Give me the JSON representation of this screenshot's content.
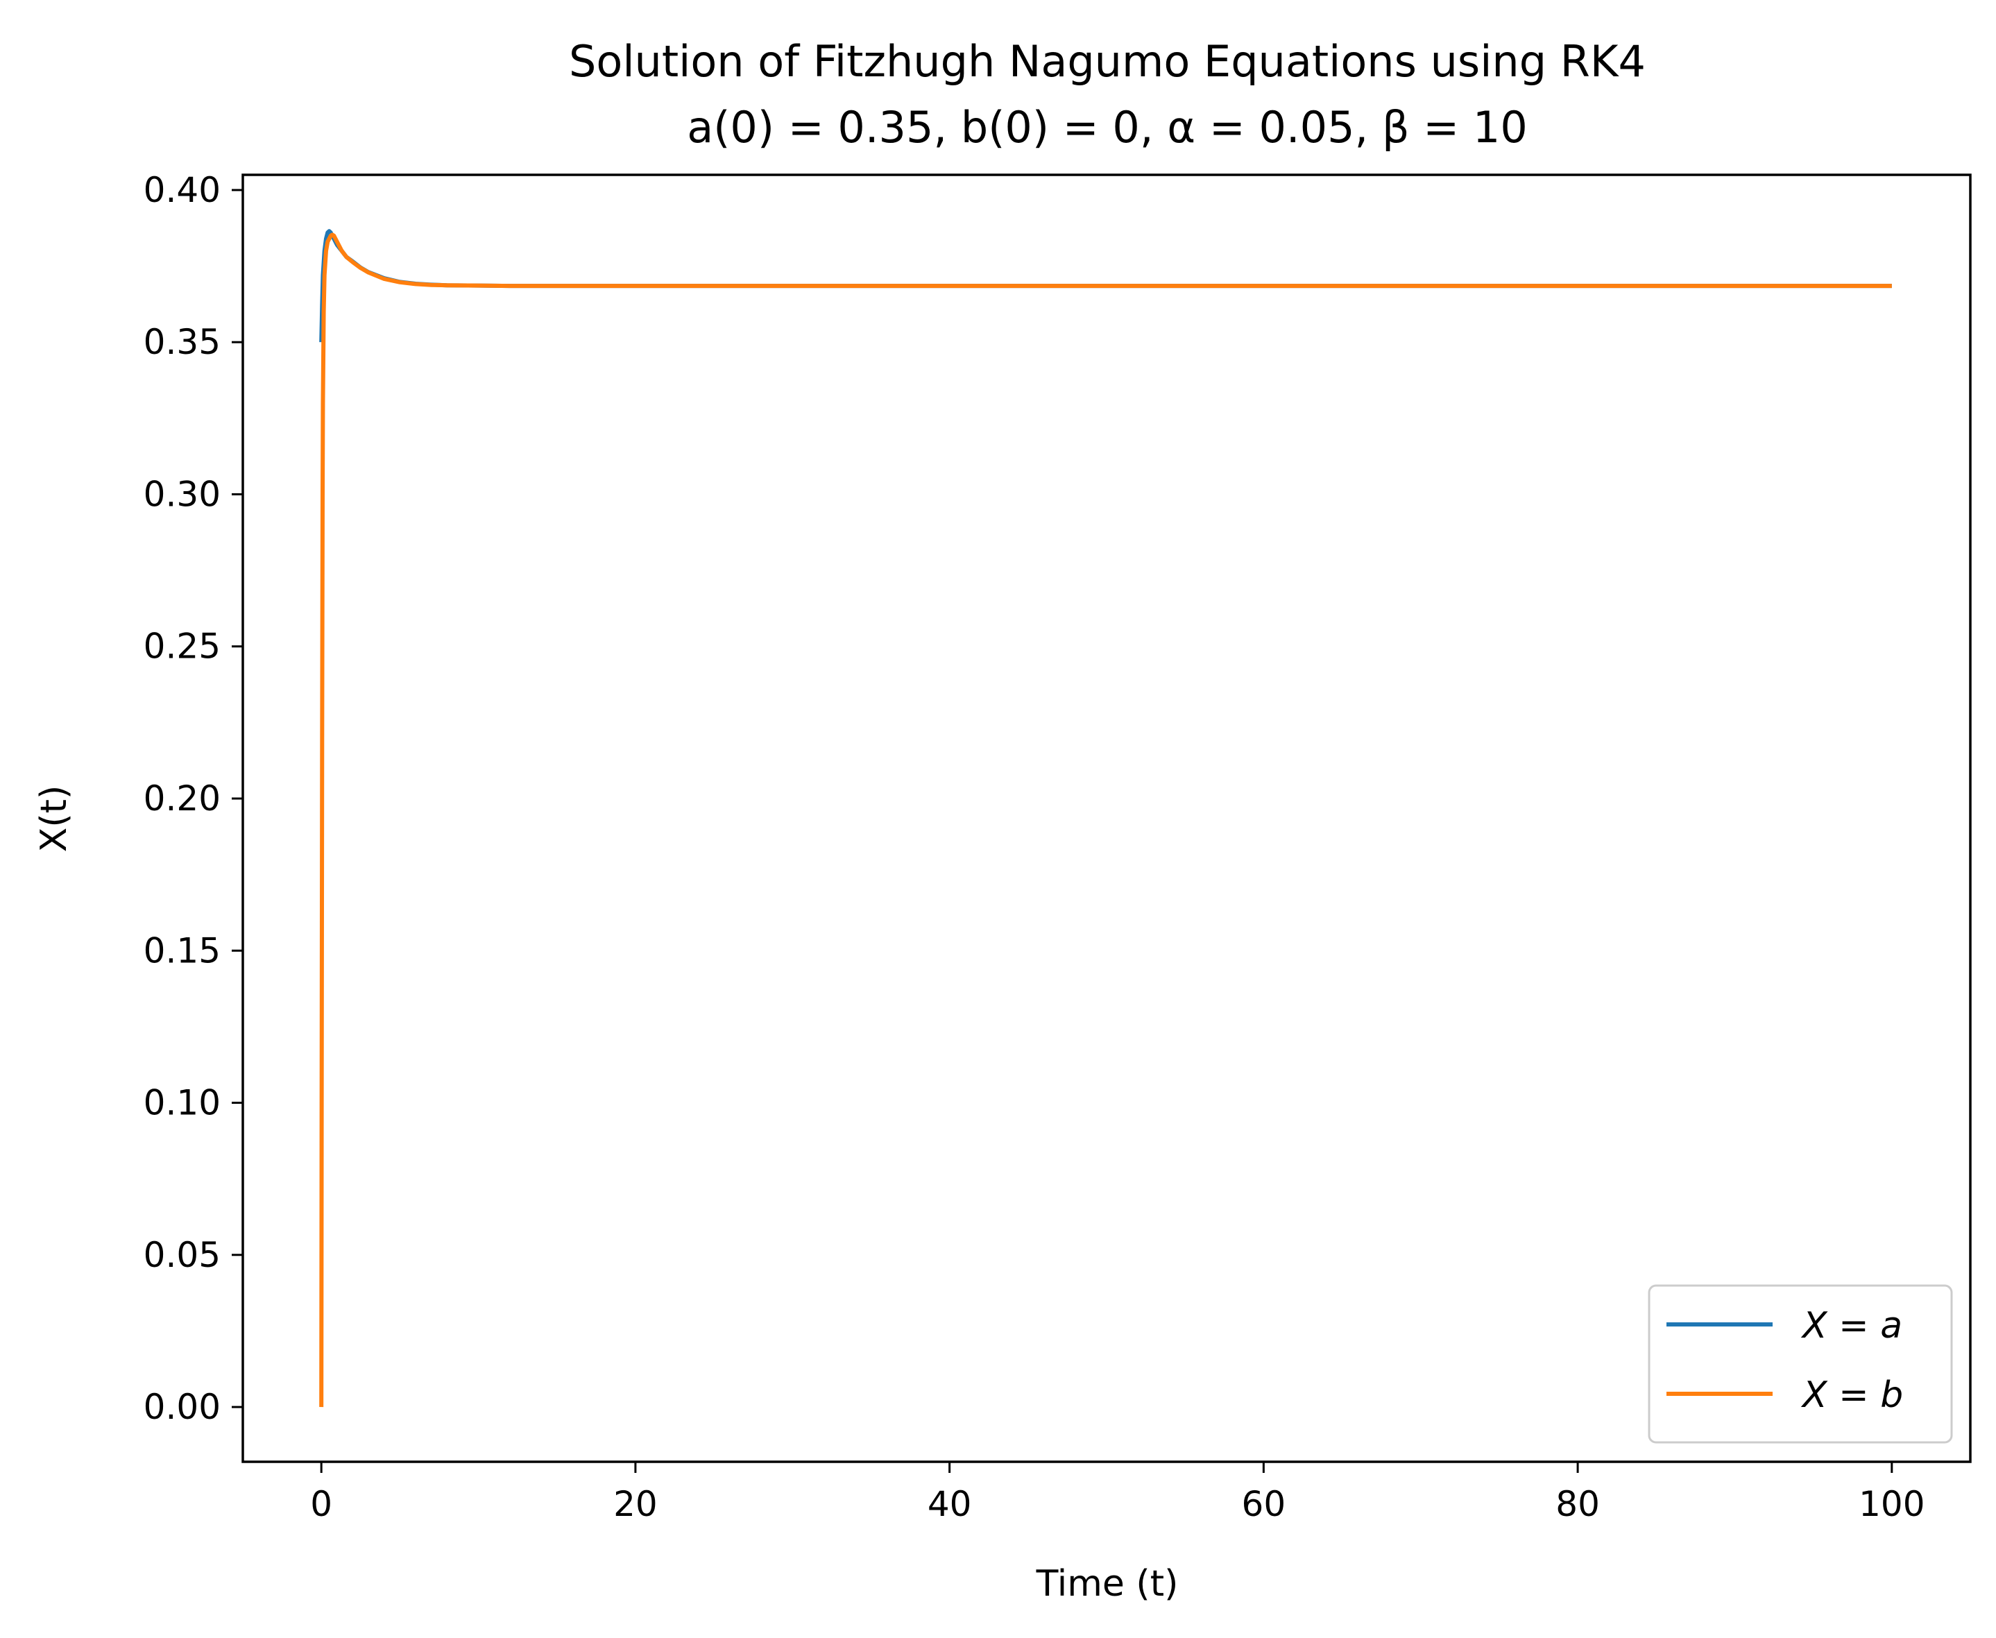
{
  "chart_data": {
    "type": "line",
    "title": "Solution of Fitzhugh Nagumo Equations using RK4",
    "subtitle": "a(0) = 0.35, b(0) = 0, α = 0.05, β = 10",
    "xlabel": "Time (t)",
    "ylabel": "X(t)",
    "xlim": [
      -5,
      105
    ],
    "ylim": [
      -0.018,
      0.405
    ],
    "xticks": [
      0,
      20,
      40,
      60,
      80,
      100
    ],
    "xtick_labels": [
      "0",
      "20",
      "40",
      "60",
      "80",
      "100"
    ],
    "yticks": [
      0.0,
      0.05,
      0.1,
      0.15,
      0.2,
      0.25,
      0.3,
      0.35,
      0.4
    ],
    "ytick_labels": [
      "0.00",
      "0.05",
      "0.10",
      "0.15",
      "0.20",
      "0.25",
      "0.30",
      "0.35",
      "0.40"
    ],
    "grid": false,
    "legend_position": "lower-right",
    "series": [
      {
        "name": "X = a",
        "color": "#1f77b4",
        "x": [
          0,
          0.05,
          0.1,
          0.2,
          0.3,
          0.4,
          0.5,
          0.6,
          0.8,
          1.0,
          1.3,
          1.6,
          2.0,
          2.5,
          3.0,
          4.0,
          5.0,
          6.0,
          7.0,
          8.0,
          10.0,
          12.0,
          15.0,
          20.0,
          30.0,
          50.0,
          70.0,
          100.0
        ],
        "y": [
          0.35,
          0.362,
          0.372,
          0.38,
          0.384,
          0.386,
          0.3865,
          0.386,
          0.384,
          0.382,
          0.38,
          0.378,
          0.3765,
          0.3745,
          0.373,
          0.371,
          0.3698,
          0.3692,
          0.3689,
          0.3687,
          0.3686,
          0.3685,
          0.3685,
          0.3685,
          0.3685,
          0.3685,
          0.3685,
          0.3685
        ]
      },
      {
        "name": "X = b",
        "color": "#ff7f0e",
        "x": [
          0,
          0.02,
          0.05,
          0.08,
          0.1,
          0.15,
          0.2,
          0.3,
          0.4,
          0.5,
          0.6,
          0.7,
          0.8,
          1.0,
          1.3,
          1.6,
          2.0,
          2.5,
          3.0,
          4.0,
          5.0,
          6.0,
          7.0,
          8.0,
          10.0,
          12.0,
          15.0,
          20.0,
          30.0,
          50.0,
          70.0,
          100.0
        ],
        "y": [
          0.0,
          0.1,
          0.22,
          0.3,
          0.33,
          0.36,
          0.372,
          0.38,
          0.383,
          0.384,
          0.385,
          0.3853,
          0.385,
          0.383,
          0.38,
          0.378,
          0.3763,
          0.3744,
          0.3729,
          0.3708,
          0.3697,
          0.3691,
          0.3688,
          0.3687,
          0.3686,
          0.3685,
          0.3685,
          0.3685,
          0.3685,
          0.3685,
          0.3685,
          0.3685
        ]
      }
    ]
  }
}
